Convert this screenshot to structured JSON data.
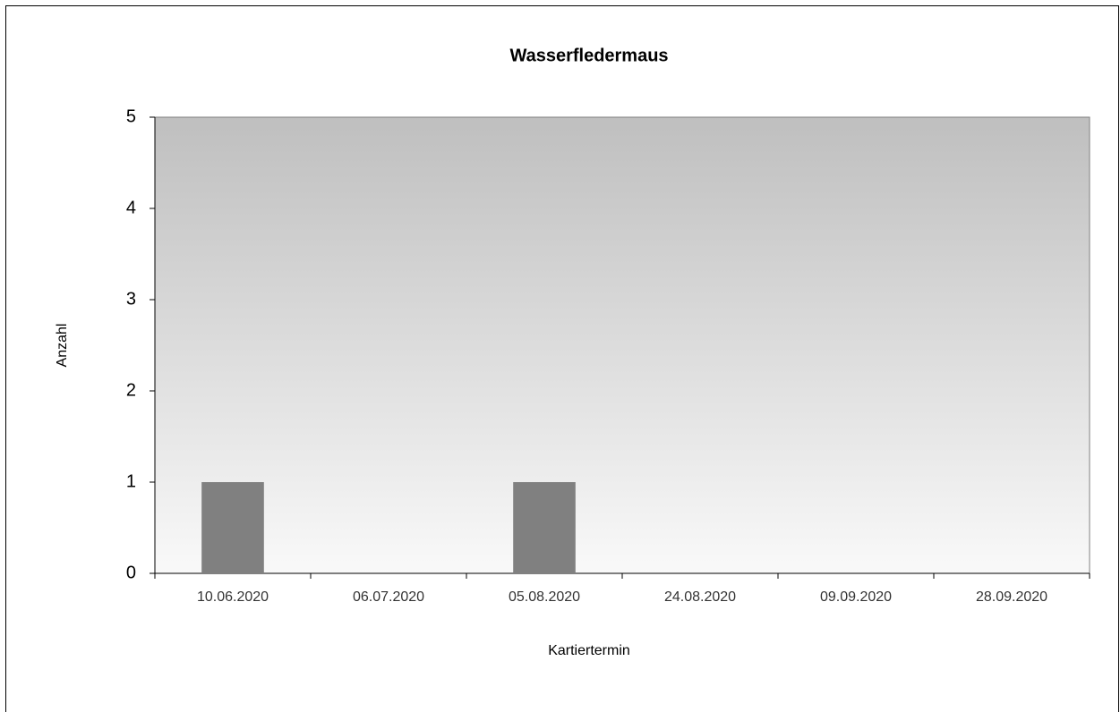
{
  "chart_data": {
    "type": "bar",
    "title": "Wasserfledermaus",
    "x_label": "Kartiertermin",
    "y_label": "Anzahl",
    "categories": [
      "10.06.2020",
      "06.07.2020",
      "05.08.2020",
      "24.08.2020",
      "09.09.2020",
      "28.09.2020"
    ],
    "values": [
      1,
      0,
      1,
      0,
      0,
      0
    ],
    "color": "#808080",
    "ylim": [
      0,
      5
    ],
    "yticks": [
      0,
      1,
      2,
      3,
      4,
      5
    ],
    "grid": false
  }
}
